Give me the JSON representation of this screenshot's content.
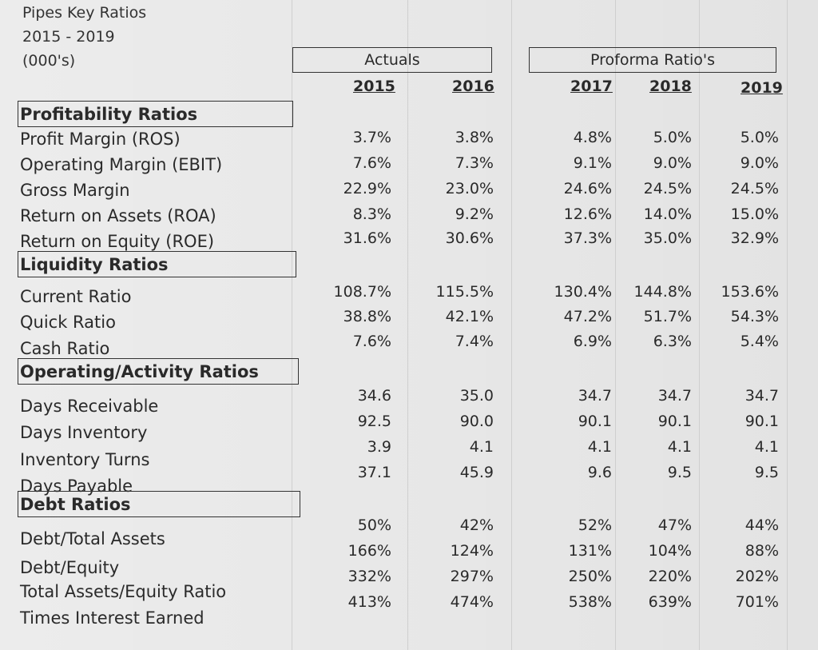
{
  "title": {
    "line1": "Pipes Key Ratios",
    "line2": "2015 - 2019",
    "line3": "(000's)"
  },
  "groups": {
    "actuals": "Actuals",
    "proforma": "Proforma Ratio's"
  },
  "years": [
    "2015",
    "2016",
    "2017",
    "2018",
    "2019"
  ],
  "sections": [
    {
      "name": "Profitability Ratios",
      "rows": [
        {
          "label": "Profit Margin (ROS)",
          "values": [
            "3.7%",
            "3.8%",
            "4.8%",
            "5.0%",
            "5.0%"
          ]
        },
        {
          "label": "Operating Margin (EBIT)",
          "values": [
            "7.6%",
            "7.3%",
            "9.1%",
            "9.0%",
            "9.0%"
          ]
        },
        {
          "label": "Gross Margin",
          "values": [
            "22.9%",
            "23.0%",
            "24.6%",
            "24.5%",
            "24.5%"
          ]
        },
        {
          "label": "Return on Assets  (ROA)",
          "values": [
            "8.3%",
            "9.2%",
            "12.6%",
            "14.0%",
            "15.0%"
          ]
        },
        {
          "label": "Return on Equity  (ROE)",
          "values": [
            "31.6%",
            "30.6%",
            "37.3%",
            "35.0%",
            "32.9%"
          ]
        }
      ]
    },
    {
      "name": "Liquidity Ratios",
      "rows": [
        {
          "label": "Current Ratio",
          "values": [
            "108.7%",
            "115.5%",
            "130.4%",
            "144.8%",
            "153.6%"
          ]
        },
        {
          "label": "Quick Ratio",
          "values": [
            "38.8%",
            "42.1%",
            "47.2%",
            "51.7%",
            "54.3%"
          ]
        },
        {
          "label": "Cash Ratio",
          "values": [
            "7.6%",
            "7.4%",
            "6.9%",
            "6.3%",
            "5.4%"
          ]
        }
      ]
    },
    {
      "name": "Operating/Activity Ratios",
      "rows": [
        {
          "label": "Days Receivable",
          "values": [
            "34.6",
            "35.0",
            "34.7",
            "34.7",
            "34.7"
          ]
        },
        {
          "label": "Days Inventory",
          "values": [
            "92.5",
            "90.0",
            "90.1",
            "90.1",
            "90.1"
          ]
        },
        {
          "label": "Inventory Turns",
          "values": [
            "3.9",
            "4.1",
            "4.1",
            "4.1",
            "4.1"
          ]
        },
        {
          "label": "Days Payable",
          "values": [
            "37.1",
            "45.9",
            "9.6",
            "9.5",
            "9.5"
          ]
        }
      ]
    },
    {
      "name": "Debt Ratios",
      "rows": [
        {
          "label": "Debt/Total Assets",
          "values": [
            "50%",
            "42%",
            "52%",
            "47%",
            "44%"
          ]
        },
        {
          "label": "Debt/Equity",
          "values": [
            "166%",
            "124%",
            "131%",
            "104%",
            "88%"
          ]
        },
        {
          "label": "Total Assets/Equity Ratio",
          "values": [
            "332%",
            "297%",
            "250%",
            "220%",
            "202%"
          ]
        },
        {
          "label": "Times Interest Earned",
          "values": [
            "413%",
            "474%",
            "538%",
            "639%",
            "701%"
          ]
        }
      ]
    }
  ]
}
